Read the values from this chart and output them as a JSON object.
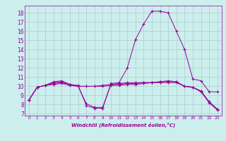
{
  "title": "",
  "xlabel": "Windchill (Refroidissement éolien,°C)",
  "bg_color": "#cceeed",
  "grid_color": "#aacccc",
  "line_color": "#990099",
  "xlim": [
    -0.5,
    23.5
  ],
  "ylim": [
    6.8,
    18.8
  ],
  "xticks": [
    0,
    1,
    2,
    3,
    4,
    5,
    6,
    7,
    8,
    9,
    10,
    11,
    12,
    13,
    14,
    15,
    16,
    17,
    18,
    19,
    20,
    21,
    22,
    23
  ],
  "yticks": [
    7,
    8,
    9,
    10,
    11,
    12,
    13,
    14,
    15,
    16,
    17,
    18
  ],
  "curve1_x": [
    0,
    1,
    2,
    3,
    4,
    5,
    6,
    7,
    8,
    9,
    10,
    11,
    12,
    13,
    14,
    15,
    16,
    17,
    18,
    19,
    20,
    21,
    22,
    23
  ],
  "curve1_y": [
    8.5,
    9.9,
    10.1,
    10.5,
    10.6,
    10.2,
    10.1,
    7.9,
    7.6,
    7.6,
    10.3,
    10.4,
    12.0,
    15.1,
    16.8,
    18.2,
    18.2,
    18.0,
    16.0,
    14.0,
    10.8,
    10.6,
    9.4,
    9.4
  ],
  "curve2_x": [
    0,
    1,
    2,
    3,
    4,
    5,
    6,
    7,
    8,
    9,
    10,
    11,
    12,
    13,
    14,
    15,
    16,
    17,
    18,
    19,
    20,
    21,
    22,
    23
  ],
  "curve2_y": [
    8.5,
    9.9,
    10.1,
    10.4,
    10.5,
    10.2,
    10.0,
    8.1,
    7.7,
    7.7,
    10.2,
    10.3,
    10.4,
    10.4,
    10.4,
    10.4,
    10.4,
    10.4,
    10.4,
    10.0,
    9.9,
    9.4,
    8.3,
    7.5
  ],
  "curve3_x": [
    0,
    1,
    2,
    3,
    4,
    5,
    6,
    7,
    8,
    9,
    10,
    11,
    12,
    13,
    14,
    15,
    16,
    17,
    18,
    19,
    20,
    21,
    22,
    23
  ],
  "curve3_y": [
    8.5,
    9.9,
    10.1,
    10.3,
    10.4,
    10.2,
    10.0,
    10.0,
    10.0,
    10.1,
    10.2,
    10.2,
    10.3,
    10.3,
    10.4,
    10.4,
    10.5,
    10.5,
    10.5,
    10.0,
    9.9,
    9.5,
    8.3,
    7.5
  ],
  "curve4_x": [
    0,
    1,
    2,
    3,
    4,
    5,
    6,
    7,
    8,
    9,
    10,
    11,
    12,
    13,
    14,
    15,
    16,
    17,
    18,
    19,
    20,
    21,
    22,
    23
  ],
  "curve4_y": [
    8.5,
    9.9,
    10.1,
    10.2,
    10.3,
    10.1,
    10.0,
    10.0,
    10.0,
    10.0,
    10.1,
    10.1,
    10.2,
    10.2,
    10.3,
    10.4,
    10.5,
    10.6,
    10.5,
    10.0,
    9.9,
    9.4,
    8.2,
    7.4
  ]
}
